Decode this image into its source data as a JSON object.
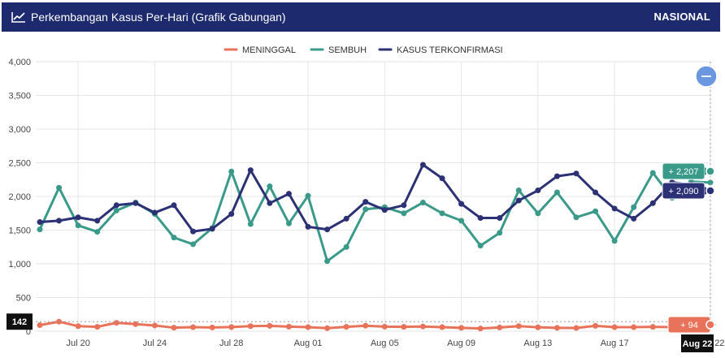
{
  "header": {
    "title": "Perkembangan Kasus Per-Hari (Grafik Gabungan)",
    "scope": "NASIONAL"
  },
  "colors": {
    "header_bg": "#1d2a6e",
    "meninggal": "#e8735a",
    "sembuh": "#3a9a8a",
    "terkonfirmasi": "#2b3174",
    "zoom_button": "#6a97e0"
  },
  "chart_data": {
    "type": "line",
    "x": [
      "Jul 18",
      "Jul 19",
      "Jul 20",
      "Jul 21",
      "Jul 22",
      "Jul 23",
      "Jul 24",
      "Jul 25",
      "Jul 26",
      "Jul 27",
      "Jul 28",
      "Jul 29",
      "Jul 30",
      "Jul 31",
      "Aug 01",
      "Aug 02",
      "Aug 03",
      "Aug 04",
      "Aug 05",
      "Aug 06",
      "Aug 07",
      "Aug 08",
      "Aug 09",
      "Aug 10",
      "Aug 11",
      "Aug 12",
      "Aug 13",
      "Aug 14",
      "Aug 15",
      "Aug 16",
      "Aug 17",
      "Aug 18",
      "Aug 19",
      "Aug 20",
      "Aug 21",
      "Aug 22"
    ],
    "x_tick_labels": [
      "Jul 20",
      "Jul 24",
      "Jul 28",
      "Aug 01",
      "Aug 05",
      "Aug 09",
      "Aug 13",
      "Aug 17",
      "Aug 22"
    ],
    "ylim": [
      0,
      4000
    ],
    "y_ticks": [
      "0",
      "500",
      "1,000",
      "1,500",
      "2,000",
      "2,500",
      "3,000",
      "3,500",
      "4,000"
    ],
    "grid": true,
    "legend_position": "top-center",
    "series": [
      {
        "name": "MENINGGAL",
        "values": [
          90,
          142,
          75,
          65,
          125,
          105,
          85,
          52,
          60,
          55,
          62,
          75,
          80,
          68,
          60,
          45,
          65,
          82,
          68,
          65,
          70,
          60,
          50,
          40,
          55,
          75,
          58,
          50,
          48,
          80,
          60,
          60,
          65,
          60,
          70,
          94
        ]
      },
      {
        "name": "SEMBUH",
        "values": [
          1510,
          2130,
          1570,
          1475,
          1790,
          1910,
          1740,
          1390,
          1290,
          1530,
          2370,
          1590,
          2150,
          1600,
          2010,
          1040,
          1250,
          1810,
          1840,
          1750,
          1910,
          1750,
          1640,
          1270,
          1460,
          2090,
          1750,
          2060,
          1690,
          1780,
          1340,
          1840,
          2350,
          1980,
          2220,
          2207
        ]
      },
      {
        "name": "KASUS TERKONFIRMASI",
        "values": [
          1620,
          1640,
          1690,
          1640,
          1870,
          1900,
          1760,
          1870,
          1480,
          1520,
          1740,
          2390,
          1900,
          2040,
          1550,
          1510,
          1670,
          1920,
          1800,
          1870,
          2470,
          2270,
          1890,
          1680,
          1680,
          1940,
          2090,
          2300,
          2340,
          2060,
          1820,
          1670,
          1900,
          2210,
          2180,
          2090
        ]
      }
    ],
    "tooltips": {
      "meninggal": "+ 94",
      "sembuh": "+ 2,207",
      "terkonfirmasi": "+ 2,090"
    },
    "crosshair": {
      "y_label": "142",
      "x_label": "Aug 22"
    }
  }
}
